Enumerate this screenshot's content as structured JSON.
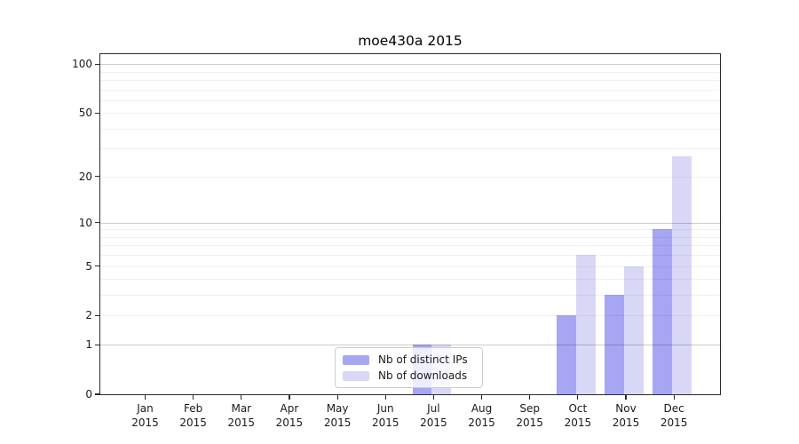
{
  "chart_data": {
    "type": "bar",
    "title": "moe430a 2015",
    "categories": [
      "Jan 2015",
      "Feb 2015",
      "Mar 2015",
      "Apr 2015",
      "May 2015",
      "Jun 2015",
      "Jul 2015",
      "Aug 2015",
      "Sep 2015",
      "Oct 2015",
      "Nov 2015",
      "Dec 2015"
    ],
    "series": [
      {
        "name": "Nb of distinct IPs",
        "color": "#a6a6f2",
        "values": [
          0,
          0,
          0,
          0,
          0,
          0,
          1,
          0,
          0,
          2,
          3,
          9
        ]
      },
      {
        "name": "Nb of downloads",
        "color": "#d8d8f6",
        "values": [
          0,
          0,
          0,
          0,
          0,
          0,
          1,
          0,
          0,
          6,
          5,
          27
        ]
      }
    ],
    "xlabel": "",
    "ylabel": "",
    "yticks": [
      0,
      1,
      2,
      5,
      10,
      20,
      50,
      100
    ],
    "ylim": [
      0,
      115
    ],
    "yscale": "log1p",
    "grid": true,
    "legend_position": "lower-center-inside",
    "colors": {
      "axis": "#2b2b2b",
      "text": "#1a1a1a",
      "legend_border": "#cccccc"
    }
  }
}
